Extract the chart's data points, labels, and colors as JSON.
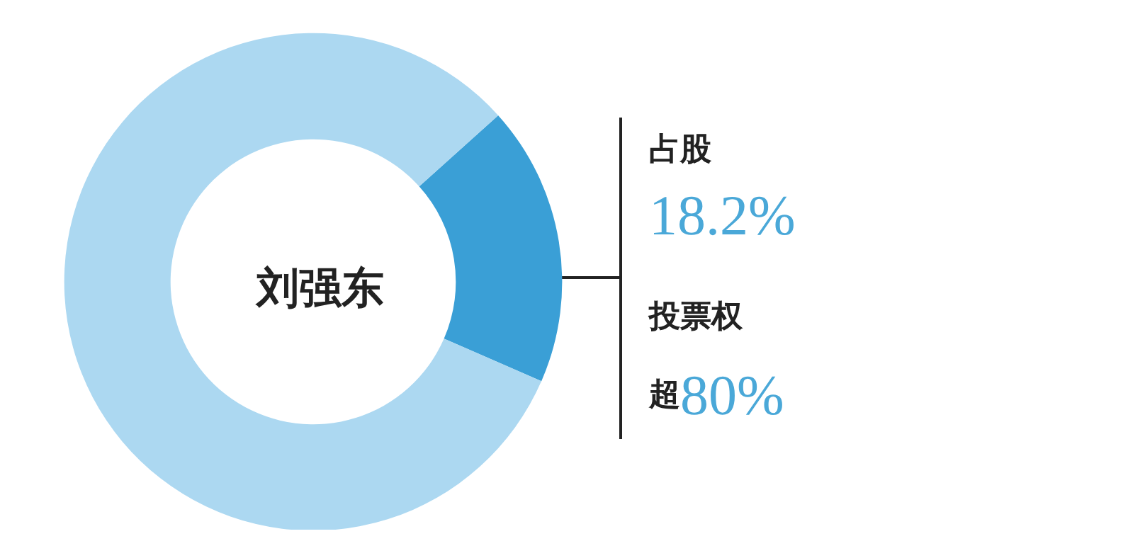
{
  "chart_data": {
    "type": "donut",
    "title": "刘强东",
    "categories": [
      null,
      null
    ],
    "values": [
      18.2,
      81.8
    ],
    "colors": [
      "#3a9fd6",
      "#acd8f1"
    ],
    "annotations": [
      "占股",
      "18.2%",
      "投票权",
      "超80%"
    ]
  }
}
